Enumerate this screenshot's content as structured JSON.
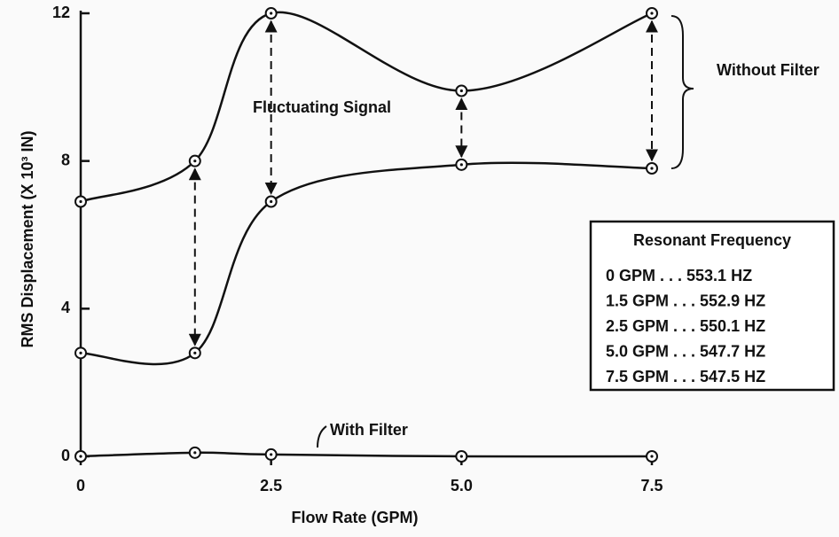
{
  "chart_data": {
    "type": "line",
    "x_label": "Flow Rate (GPM)",
    "y_label": "RMS Displacement (X 10³ IN)",
    "x": [
      0,
      1.5,
      2.5,
      5.0,
      7.5
    ],
    "series": [
      {
        "name": "Without Filter",
        "color": "#111111",
        "values": [
          6.9,
          8.0,
          12,
          9.9,
          12
        ],
        "lower": [
          2.8,
          2.8,
          6.9,
          7.9,
          7.8
        ]
      },
      {
        "name": "With Filter",
        "color": "#111111",
        "values": [
          0,
          0.1,
          0.05,
          0,
          0
        ]
      }
    ],
    "xlim": [
      0,
      7.5
    ],
    "xticks": [
      0,
      2.5,
      {
        "value": 5,
        "label": "5.0"
      },
      7.5
    ],
    "ylim": [
      0,
      12
    ],
    "yticks": [
      0,
      4,
      8,
      12
    ],
    "annotation": "Fluctuating Signal",
    "resonant_frequency": {
      "title": "Resonant Frequency",
      "rows": [
        "0 GPM . . . 553.1 HZ",
        "1.5 GPM . . . 552.9 HZ",
        "2.5 GPM . . . 550.1 HZ",
        "5.0 GPM . . . 547.7 HZ",
        "7.5 GPM . . . 547.5 HZ"
      ]
    }
  }
}
